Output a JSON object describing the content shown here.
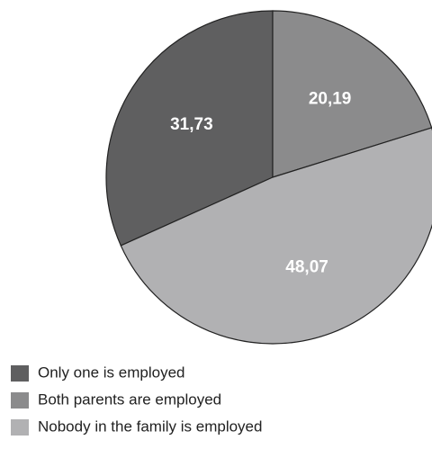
{
  "chart_data": {
    "type": "pie",
    "categories": [
      "Only one is employed",
      "Both parents are employed",
      "Nobody in the family is employed"
    ],
    "values": [
      31.73,
      20.19,
      48.07
    ],
    "value_labels": [
      "31,73",
      "20,19",
      "48,07"
    ],
    "colors": [
      "#5f5f60",
      "#8b8b8c",
      "#b1b1b3"
    ],
    "legend": "bottom-left"
  }
}
